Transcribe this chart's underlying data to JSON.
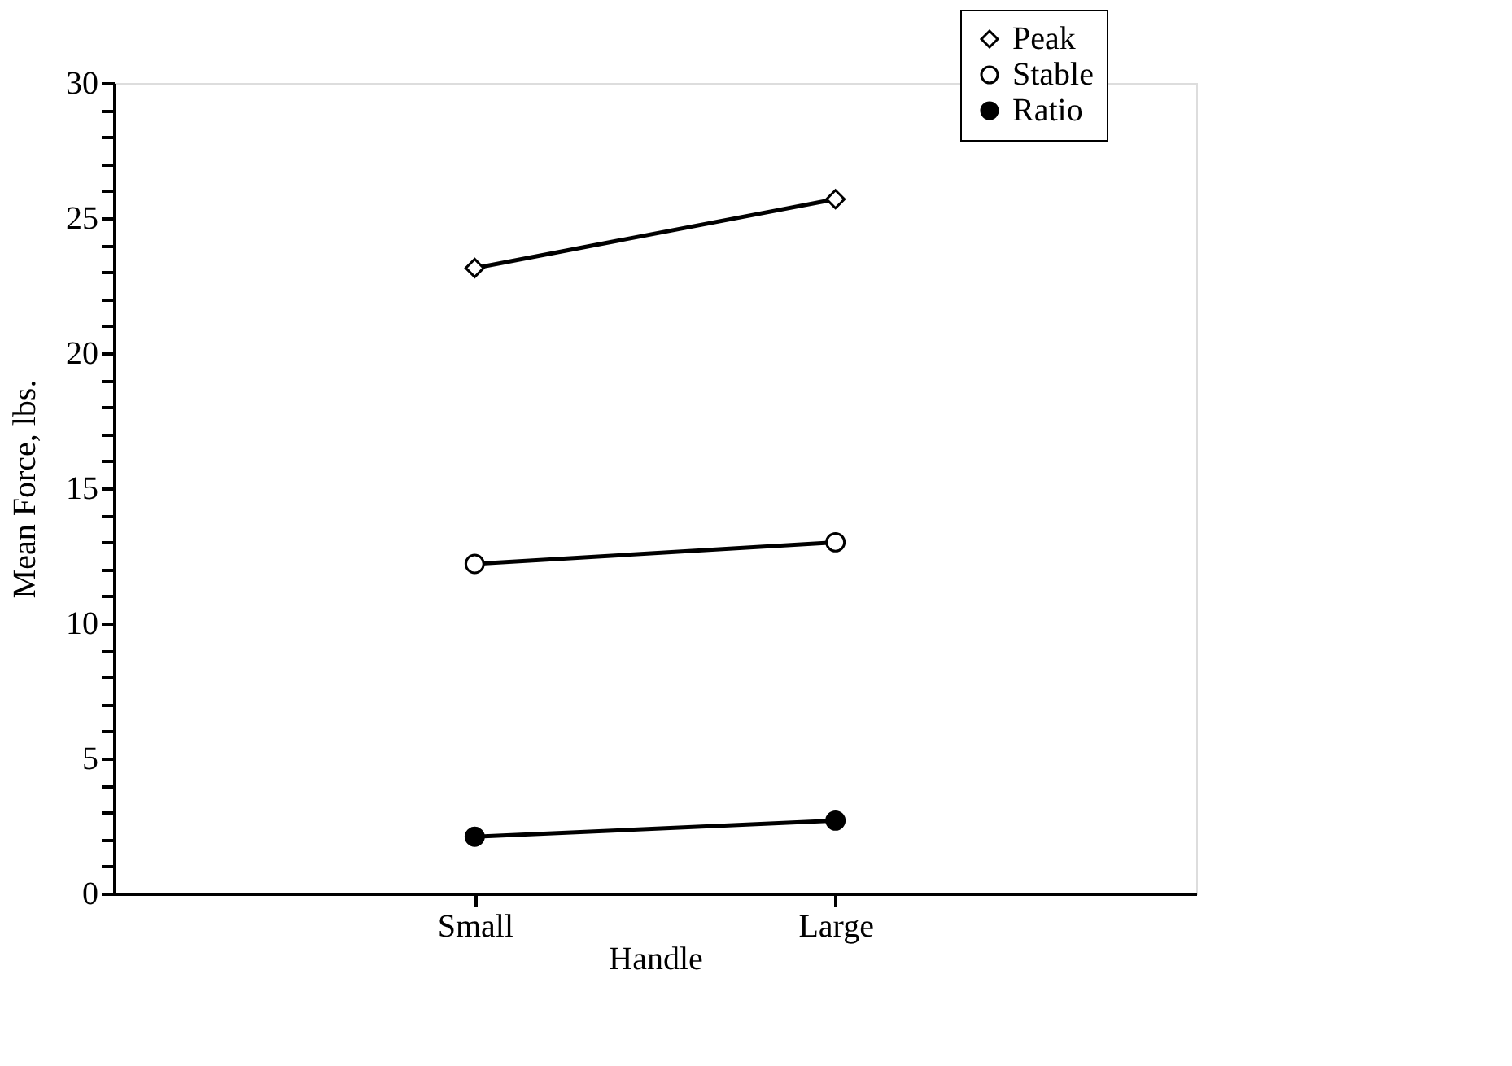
{
  "chart_data": {
    "type": "line",
    "xlabel": "Handle",
    "ylabel": "Mean Force, lbs.",
    "categories": [
      "Small",
      "Large"
    ],
    "series": [
      {
        "name": "Peak",
        "color": "#000000",
        "marker": "diamond",
        "values": [
          23.15,
          25.7
        ]
      },
      {
        "name": "Stable",
        "color": "#000000",
        "marker": "circle",
        "values": [
          12.2,
          13.0
        ]
      },
      {
        "name": "Ratio",
        "color": "#000000",
        "marker": "circle",
        "values": [
          2.1,
          2.7
        ]
      }
    ],
    "ylim": [
      0,
      30
    ],
    "yticks": [
      0,
      {
        "value": 1,
        "label": null
      },
      {
        "value": 2,
        "label": null
      },
      {
        "value": 3,
        "label": null
      },
      {
        "value": 4,
        "label": null
      },
      5,
      {
        "value": 6,
        "label": null
      },
      {
        "value": 7,
        "label": null
      },
      {
        "value": 8,
        "label": null
      },
      {
        "value": 9,
        "label": null
      },
      10,
      {
        "value": 11,
        "label": null
      },
      {
        "value": 12,
        "label": null
      },
      {
        "value": 13,
        "label": null
      },
      {
        "value": 14,
        "label": null
      },
      15,
      {
        "value": 16,
        "label": null
      },
      {
        "value": 17,
        "label": null
      },
      {
        "value": 18,
        "label": null
      },
      {
        "value": 19,
        "label": null
      },
      20,
      {
        "value": 21,
        "label": null
      },
      {
        "value": 22,
        "label": null
      },
      {
        "value": 23,
        "label": null
      },
      {
        "value": 24,
        "label": null
      },
      25,
      {
        "value": 26,
        "label": null
      },
      {
        "value": 27,
        "label": null
      },
      {
        "value": 28,
        "label": null
      },
      {
        "value": 29,
        "label": null
      },
      30
    ],
    "legend": "top right",
    "grid": false,
    "line_style": "solid"
  }
}
